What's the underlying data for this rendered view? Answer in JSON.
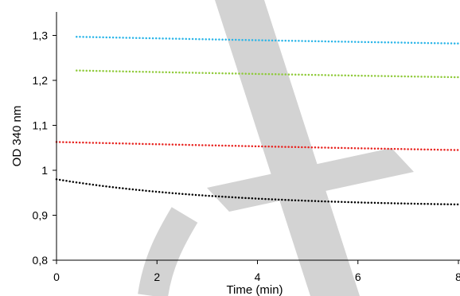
{
  "chart_data": {
    "type": "scatter",
    "title": "",
    "xlabel": "Time (min)",
    "ylabel": "OD 340 nm",
    "xlim": [
      0,
      8
    ],
    "ylim": [
      0.8,
      1.35
    ],
    "x_ticks": [
      {
        "value": 0,
        "label": "0"
      },
      {
        "value": 2,
        "label": "2"
      },
      {
        "value": 4,
        "label": "4"
      },
      {
        "value": 6,
        "label": "6"
      },
      {
        "value": 8,
        "label": "8"
      }
    ],
    "y_ticks": [
      {
        "value": 0.8,
        "label": "0,8"
      },
      {
        "value": 0.9,
        "label": "0,9"
      },
      {
        "value": 1.0,
        "label": "1"
      },
      {
        "value": 1.1,
        "label": "1,1"
      },
      {
        "value": 1.2,
        "label": "1,2"
      },
      {
        "value": 1.3,
        "label": "1,3"
      }
    ],
    "grid": false,
    "legend": "none",
    "series": [
      {
        "color": "#2ab5e8",
        "x_start": 0.4,
        "x_end": 8.0,
        "y_start": 1.297,
        "y_end": 1.282,
        "curvature": 0.3
      },
      {
        "color": "#8fca3a",
        "x_start": 0.4,
        "x_end": 8.0,
        "y_start": 1.222,
        "y_end": 1.207,
        "curvature": 0.3
      },
      {
        "color": "#e8231f",
        "x_start": 0.0,
        "x_end": 8.0,
        "y_start": 1.063,
        "y_end": 1.045,
        "curvature": 0.3
      },
      {
        "color": "#000000",
        "x_start": 0.0,
        "x_end": 8.0,
        "y_start": 0.98,
        "y_end": 0.924,
        "curvature": 2.4
      }
    ]
  },
  "watermark": {
    "text": "CH",
    "color": "#d3d3d3"
  }
}
